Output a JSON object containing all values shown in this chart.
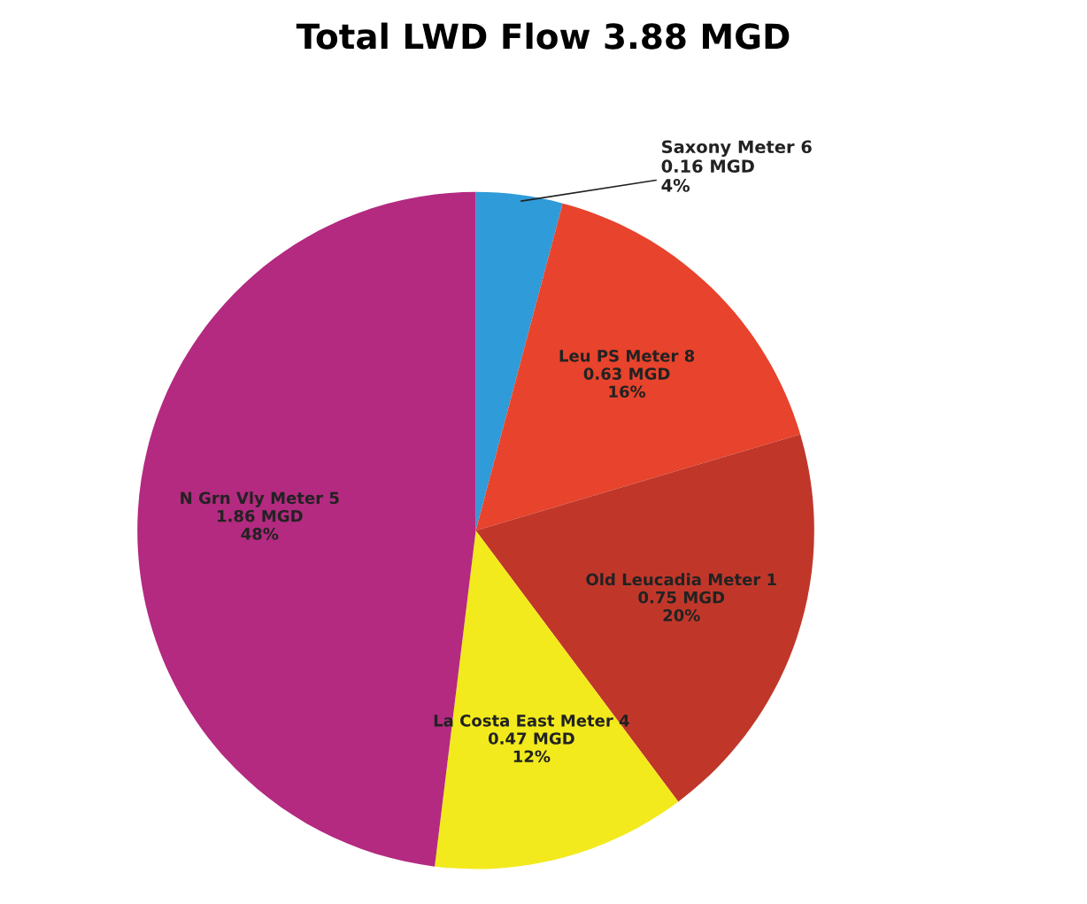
{
  "chart_data": {
    "type": "pie",
    "title": "Total LWD Flow 3.88 MGD",
    "categories": [
      "Saxony Meter 6",
      "Leu PS Meter 8",
      "Old Leucadia Meter 1",
      "La Costa East Meter 4",
      "N Grn Vly Meter 5"
    ],
    "values": [
      0.16,
      0.63,
      0.75,
      0.47,
      1.86
    ],
    "value_labels": [
      "0.16 MGD\n4%",
      "0.63 MGD\n16%",
      "0.75 MGD\n20%",
      "0.47 MGD\n12%",
      "1.86 MGD\n48%"
    ],
    "colors": [
      "#2f9bd8",
      "#e8432c",
      "#c0372a",
      "#f2ea1c",
      "#b32a80"
    ],
    "legend": false
  }
}
